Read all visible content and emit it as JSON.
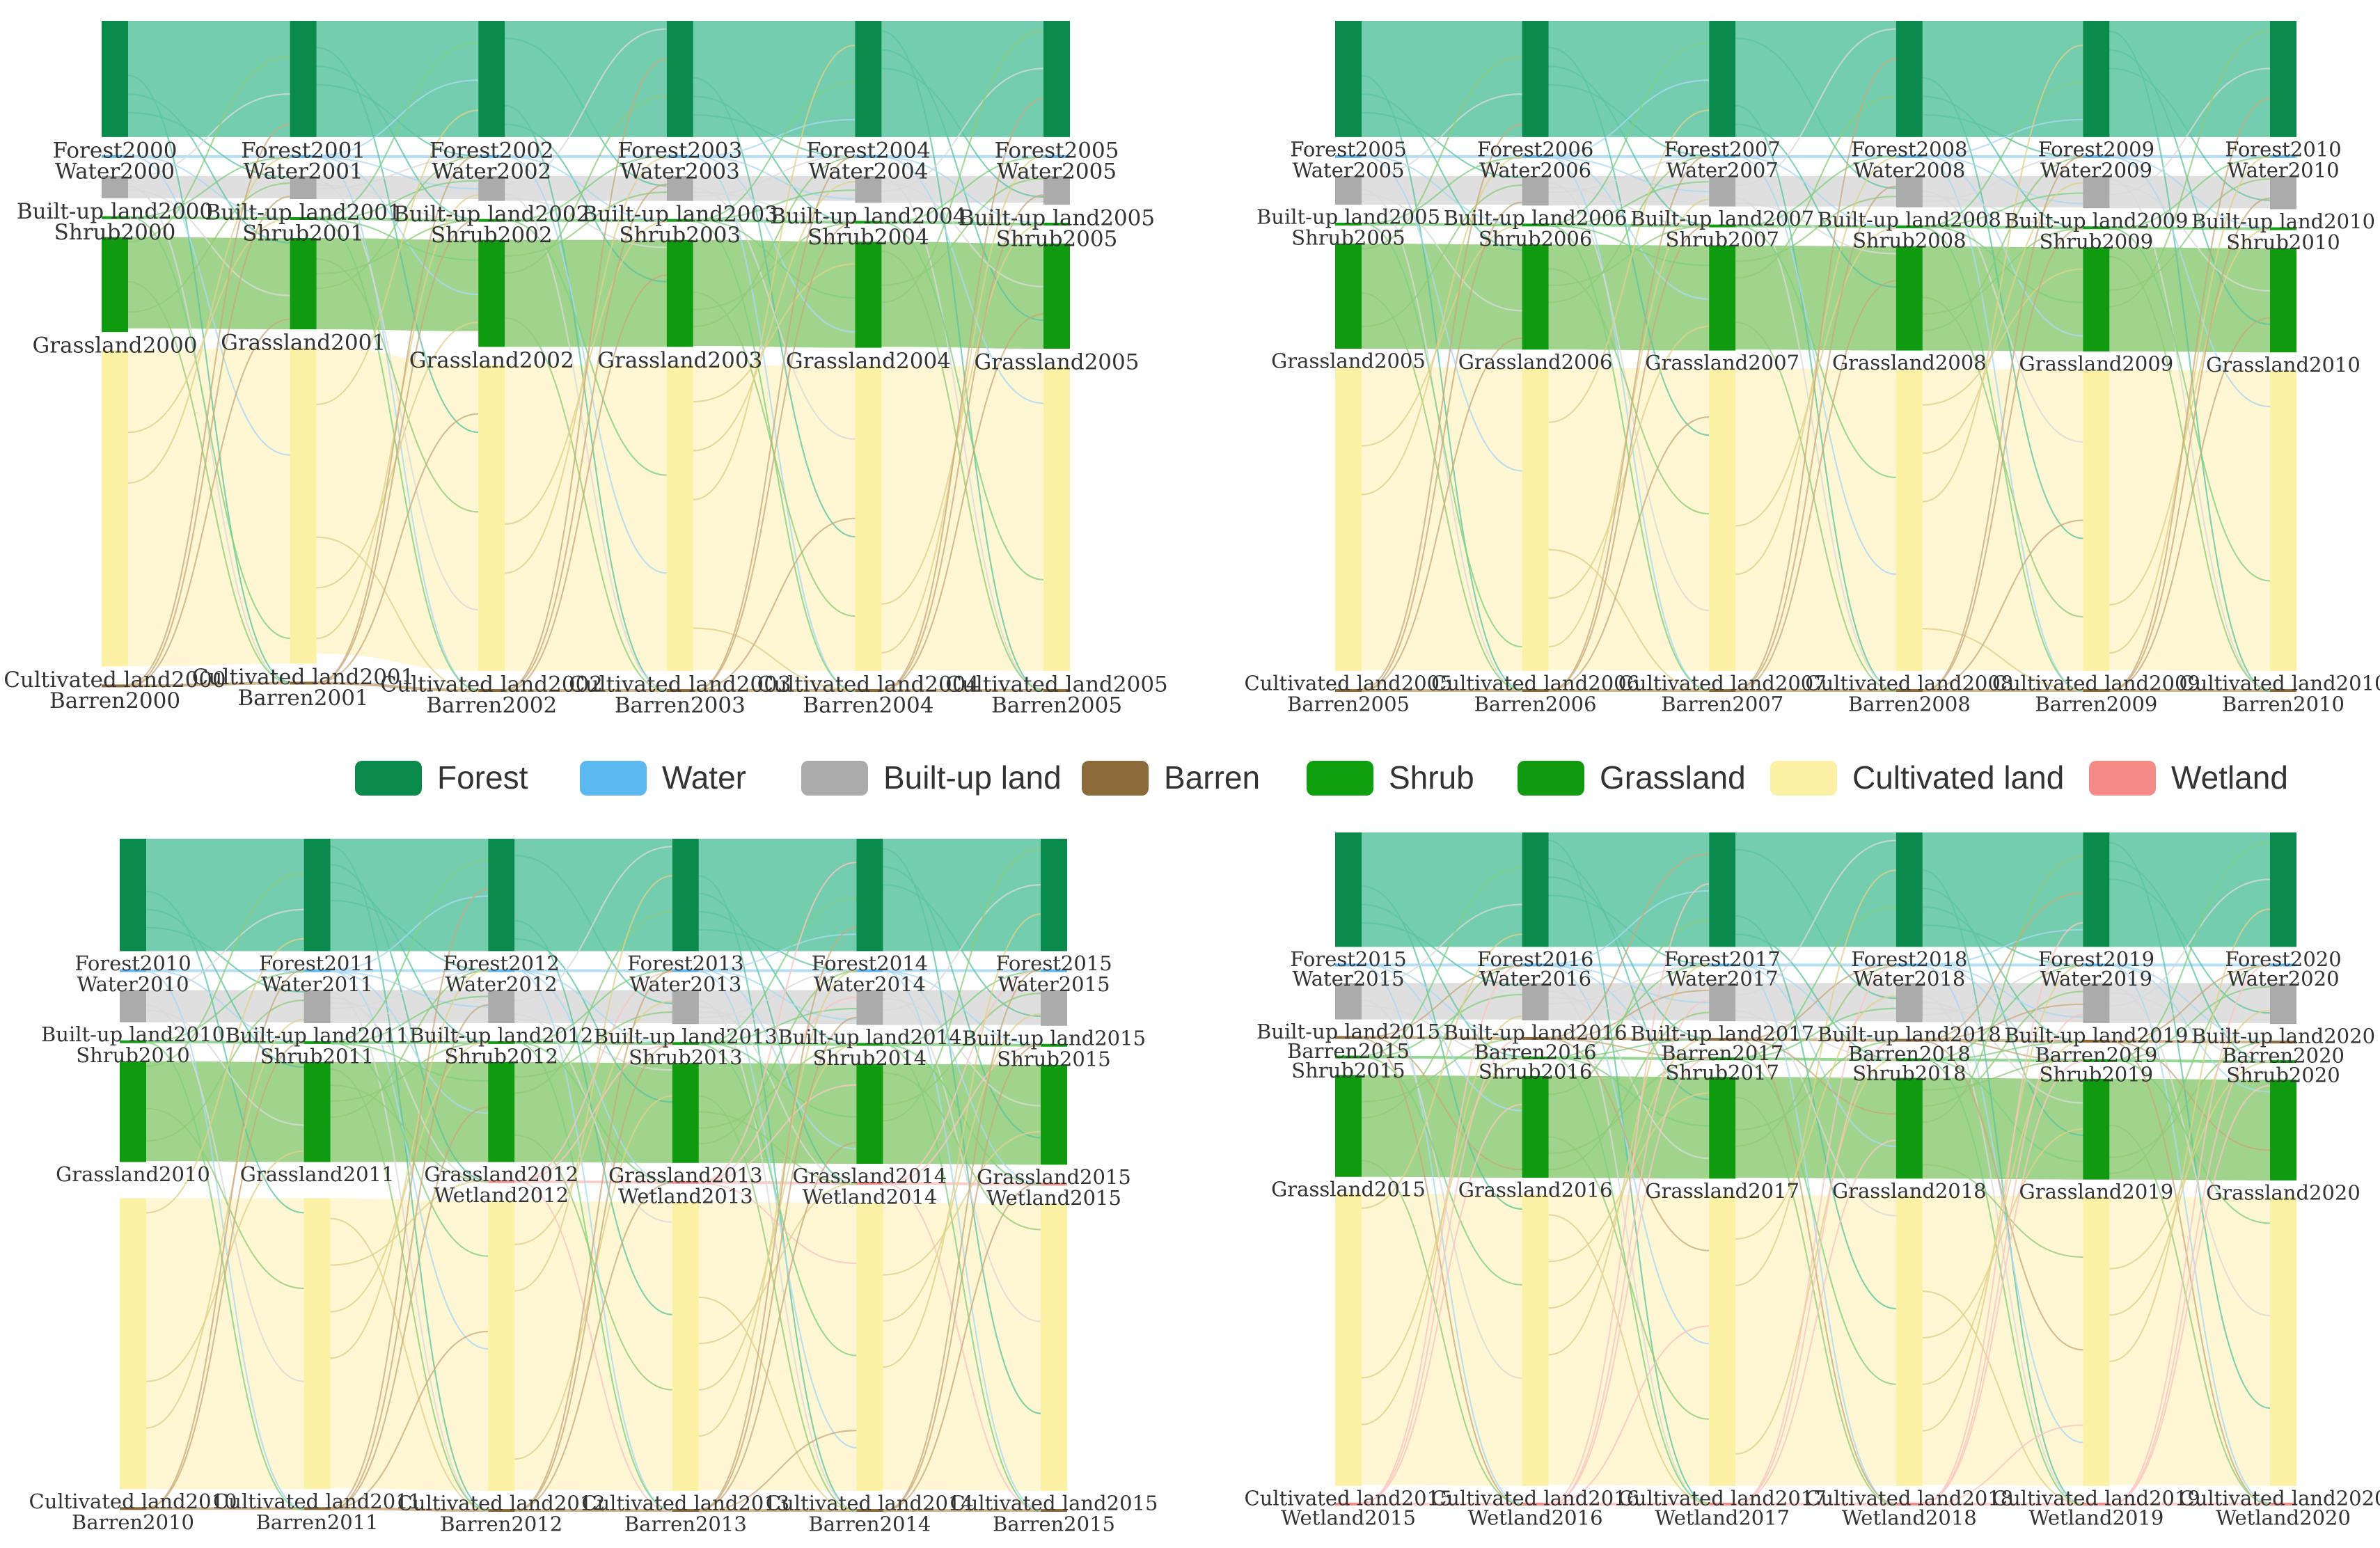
{
  "legend": [
    {
      "name": "Forest",
      "color": "#0b8a4e"
    },
    {
      "name": "Water",
      "color": "#5cb8f0"
    },
    {
      "name": "Built-up land",
      "color": "#ababab"
    },
    {
      "name": "Barren",
      "color": "#8c6a3a"
    },
    {
      "name": "Shrub",
      "color": "#0ea00e"
    },
    {
      "name": "Grassland",
      "color": "#0f9a0f"
    },
    {
      "name": "Cultivated land",
      "color": "#fdf1a6"
    },
    {
      "name": "Wetland",
      "color": "#f58a86"
    }
  ],
  "chart_data": [
    {
      "type": "sankey",
      "years": [
        "2000",
        "2001",
        "2002",
        "2003",
        "2004",
        "2005"
      ],
      "categories": [
        "Forest",
        "Water",
        "Built-up land",
        "Shrub",
        "Grassland",
        "Cultivated land",
        "Barren"
      ],
      "node_labels": [
        [
          "Forest2000",
          "Water2000",
          "Built-up land2000",
          "Shrub2000",
          "Grassland2000",
          "Cultivated land2000",
          "Barren2000"
        ],
        [
          "Forest2001",
          "Water2001",
          "Built-up land2001",
          "Shrub2001",
          "Grassland2001",
          "Cultivated land2001",
          "Barren2001"
        ],
        [
          "Forest2002",
          "Water2002",
          "Built-up land2002",
          "Shrub2002",
          "Grassland2002",
          "Cultivated land2002",
          "Barren2002"
        ],
        [
          "Forest2003",
          "Water2003",
          "Built-up land2003",
          "Shrub2003",
          "Grassland2003",
          "Cultivated land2003",
          "Barren2003"
        ],
        [
          "Forest2004",
          "Water2004",
          "Built-up land2004",
          "Shrub2004",
          "Grassland2004",
          "Cultivated land2004",
          "Barren2004"
        ],
        [
          "Forest2005",
          "Water2005",
          "Built-up land2005",
          "Shrub2005",
          "Grassland2005",
          "Cultivated land2005",
          "Barren2005"
        ]
      ],
      "node_values": [
        [
          126,
          3,
          24,
          2,
          103,
          343,
          1
        ],
        [
          126,
          3,
          25,
          2,
          99,
          343,
          1
        ],
        [
          126,
          3,
          27,
          2,
          116,
          332,
          1
        ],
        [
          126,
          3,
          27,
          2,
          116,
          332,
          1
        ],
        [
          126,
          3,
          29,
          2,
          115,
          331,
          1
        ],
        [
          126,
          3,
          31,
          2,
          114,
          330,
          1
        ]
      ]
    },
    {
      "type": "sankey",
      "years": [
        "2005",
        "2006",
        "2007",
        "2008",
        "2009",
        "2010"
      ],
      "categories": [
        "Forest",
        "Water",
        "Built-up land",
        "Shrub",
        "Grassland",
        "Cultivated land",
        "Barren"
      ],
      "node_labels": [
        [
          "Forest2005",
          "Water2005",
          "Built-up land2005",
          "Shrub2005",
          "Grassland2005",
          "Cultivated land2005",
          "Barren2005"
        ],
        [
          "Forest2006",
          "Water2006",
          "Built-up land2006",
          "Shrub2006",
          "Grassland2006",
          "Cultivated land2006",
          "Barren2006"
        ],
        [
          "Forest2007",
          "Water2007",
          "Built-up land2007",
          "Shrub2007",
          "Grassland2007",
          "Cultivated land2007",
          "Barren2007"
        ],
        [
          "Forest2008",
          "Water2008",
          "Built-up land2008",
          "Shrub2008",
          "Grassland2008",
          "Cultivated land2008",
          "Barren2008"
        ],
        [
          "Forest2009",
          "Water2009",
          "Built-up land2009",
          "Shrub2009",
          "Grassland2009",
          "Cultivated land2009",
          "Barren2009"
        ],
        [
          "Forest2010",
          "Water2010",
          "Built-up land2010",
          "Shrub2010",
          "Grassland2010",
          "Cultivated land2010",
          "Barren2010"
        ]
      ],
      "node_values": [
        [
          126,
          3,
          31,
          2,
          114,
          330,
          1
        ],
        [
          126,
          3,
          32,
          2,
          114,
          329,
          1
        ],
        [
          126,
          3,
          33,
          2,
          114,
          328,
          1
        ],
        [
          126,
          3,
          34,
          2,
          113,
          328,
          1
        ],
        [
          126,
          3,
          35,
          2,
          113,
          327,
          1
        ],
        [
          126,
          3,
          36,
          2,
          113,
          326,
          1
        ]
      ]
    },
    {
      "type": "sankey",
      "years": [
        "2010",
        "2011",
        "2012",
        "2013",
        "2014",
        "2015"
      ],
      "categories": [
        "Forest",
        "Water",
        "Built-up land",
        "Shrub",
        "Grassland",
        "Wetland",
        "Cultivated land",
        "Barren"
      ],
      "node_labels": [
        [
          "Forest2010",
          "Water2010",
          "Built-up land2010",
          "Shrub2010",
          "Grassland2010",
          "",
          "Cultivated land2010",
          "Barren2010"
        ],
        [
          "Forest2011",
          "Water2011",
          "Built-up land2011",
          "Shrub2011",
          "Grassland2011",
          "",
          "Cultivated land2011",
          "Barren2011"
        ],
        [
          "Forest2012",
          "Water2012",
          "Built-up land2012",
          "Shrub2012",
          "Grassland2012",
          "Wetland2012",
          "Cultivated land2012",
          "Barren2012"
        ],
        [
          "Forest2013",
          "Water2013",
          "Built-up land2013",
          "Shrub2013",
          "Grassland2013",
          "Wetland2013",
          "Cultivated land2013",
          "Barren2013"
        ],
        [
          "Forest2014",
          "Water2014",
          "Built-up land2014",
          "Shrub2014",
          "Grassland2014",
          "Wetland2014",
          "Cultivated land2014",
          "Barren2014"
        ],
        [
          "Forest2015",
          "Water2015",
          "Built-up land2015",
          "Shrub2015",
          "Grassland2015",
          "Wetland2015",
          "Cultivated land2015",
          "Barren2015"
        ]
      ],
      "node_values": [
        [
          126,
          3,
          36,
          2,
          113,
          0,
          326,
          1
        ],
        [
          126,
          3,
          37,
          2,
          112,
          0,
          326,
          1
        ],
        [
          126,
          3,
          37,
          2,
          112,
          1,
          325,
          1
        ],
        [
          126,
          3,
          38,
          2,
          112,
          1,
          324,
          1
        ],
        [
          126,
          3,
          39,
          2,
          112,
          1,
          323,
          1
        ],
        [
          126,
          3,
          40,
          2,
          112,
          1,
          322,
          1
        ]
      ]
    },
    {
      "type": "sankey",
      "years": [
        "2015",
        "2016",
        "2017",
        "2018",
        "2019",
        "2020"
      ],
      "categories": [
        "Forest",
        "Water",
        "Built-up land",
        "Barren",
        "Shrub",
        "Grassland",
        "Cultivated land",
        "Wetland"
      ],
      "node_labels": [
        [
          "Forest2015",
          "Water2015",
          "Built-up land2015",
          "Barren2015",
          "Shrub2015",
          "Grassland2015",
          "Cultivated land2015",
          "Wetland2015"
        ],
        [
          "Forest2016",
          "Water2016",
          "Built-up land2016",
          "Barren2016",
          "Shrub2016",
          "Grassland2016",
          "Cultivated land2016",
          "Wetland2016"
        ],
        [
          "Forest2017",
          "Water2017",
          "Built-up land2017",
          "Barren2017",
          "Shrub2017",
          "Grassland2017",
          "Cultivated land2017",
          "Wetland2017"
        ],
        [
          "Forest2018",
          "Water2018",
          "Built-up land2018",
          "Barren2018",
          "Shrub2018",
          "Grassland2018",
          "Cultivated land2018",
          "Wetland2018"
        ],
        [
          "Forest2019",
          "Water2019",
          "Built-up land2019",
          "Barren2019",
          "Shrub2019",
          "Grassland2019",
          "Cultivated land2019",
          "Wetland2019"
        ],
        [
          "Forest2020",
          "Water2020",
          "Built-up land2020",
          "Barren2020",
          "Shrub2020",
          "Grassland2020",
          "Cultivated land2020",
          "Wetland2020"
        ]
      ],
      "node_values": [
        [
          126,
          3,
          40,
          1,
          2,
          112,
          322,
          1
        ],
        [
          126,
          3,
          41,
          1,
          2,
          112,
          321,
          1
        ],
        [
          126,
          3,
          42,
          1,
          2,
          112,
          320,
          1
        ],
        [
          126,
          3,
          43,
          1,
          2,
          111,
          320,
          1
        ],
        [
          126,
          3,
          44,
          1,
          2,
          111,
          319,
          1
        ],
        [
          126,
          3,
          45,
          1,
          2,
          111,
          318,
          1
        ]
      ]
    }
  ]
}
